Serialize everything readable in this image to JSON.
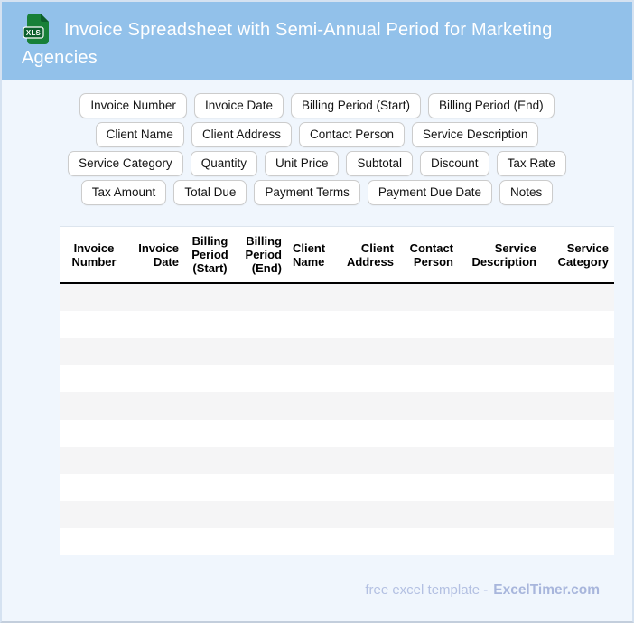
{
  "header": {
    "title": "Invoice Spreadsheet with Semi-Annual Period for Marketing Agencies",
    "file_icon": {
      "label": "XLS",
      "body_color": "#188038",
      "fold_color": "#0c5e2b",
      "badge_color": "#0b5f2c"
    },
    "background_color": "#92c1ea"
  },
  "chips": {
    "rows": [
      [
        "Invoice Number",
        "Invoice Date",
        "Billing Period (Start)",
        "Billing Period (End)"
      ],
      [
        "Client Name",
        "Client Address",
        "Contact Person",
        "Service Description"
      ],
      [
        "Service Category",
        "Quantity",
        "Unit Price",
        "Subtotal",
        "Discount",
        "Tax Rate"
      ],
      [
        "Tax Amount",
        "Total Due",
        "Payment Terms",
        "Payment Due Date",
        "Notes"
      ]
    ]
  },
  "table": {
    "columns": [
      {
        "label": "Invoice Number",
        "align": "center"
      },
      {
        "label": "Invoice Date",
        "align": "right"
      },
      {
        "label": "Billing Period (Start)",
        "align": "center"
      },
      {
        "label": "Billing Period (End)",
        "align": "right"
      },
      {
        "label": "Client Name",
        "align": "left"
      },
      {
        "label": "Client Address",
        "align": "right"
      },
      {
        "label": "Contact Person",
        "align": "right"
      },
      {
        "label": "Service Description",
        "align": "right"
      },
      {
        "label": "Service Category",
        "align": "right"
      }
    ],
    "empty_row_count": 10,
    "alt_row_color": "#f5f5f6"
  },
  "footer": {
    "prefix": "free excel template -",
    "brand": "ExcelTimer.com"
  },
  "colors": {
    "page_background": "#f0f6fd",
    "header_blue": "#92c1ea",
    "footer_text": "#b3c0e2",
    "footer_brand": "#a8b6dc"
  }
}
